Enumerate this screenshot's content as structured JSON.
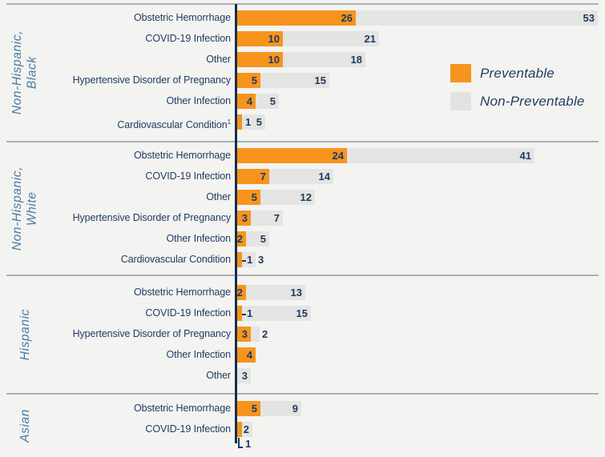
{
  "colors": {
    "preventable": "#f7941e",
    "non_preventable": "#e4e4e3",
    "axis": "#16304d",
    "text": "#1c3a5e",
    "group_label": "#4a7aa6",
    "background": "#f3f3f1",
    "separator": "#abb1b5"
  },
  "legend": {
    "items": [
      {
        "label": "Preventable",
        "color": "#f7941e"
      },
      {
        "label": "Non-Preventable",
        "color": "#e4e4e3"
      }
    ]
  },
  "chart_data": {
    "type": "bar",
    "orientation": "horizontal",
    "stacked": true,
    "series_names": [
      "Preventable",
      "Non-Preventable"
    ],
    "legend_position": "top-right",
    "groups": [
      {
        "group": "Non-Hispanic, Black",
        "group_lines": [
          "Non-Hispanic,",
          "Black"
        ],
        "rows": [
          {
            "category": "Obstetric Hemorrhage",
            "preventable": 26,
            "non_preventable": 53,
            "p_pos": "inside",
            "n_pos": "inside"
          },
          {
            "category": "COVID-19 Infection",
            "preventable": 10,
            "non_preventable": 21,
            "p_pos": "inside",
            "n_pos": "inside"
          },
          {
            "category": "Other",
            "preventable": 10,
            "non_preventable": 18,
            "p_pos": "inside",
            "n_pos": "inside"
          },
          {
            "category": "Hypertensive Disorder of Pregnancy",
            "preventable": 5,
            "non_preventable": 15,
            "p_pos": "inside",
            "n_pos": "inside"
          },
          {
            "category": "Other Infection",
            "preventable": 4,
            "non_preventable": 5,
            "p_pos": "inside",
            "n_pos": "inside"
          },
          {
            "category": "Cardiovascular Condition",
            "footnote": "1",
            "preventable": 1,
            "non_preventable": 5,
            "p_pos": "after",
            "n_pos": "inside"
          }
        ]
      },
      {
        "group": "Non-Hispanic, White",
        "group_lines": [
          "Non-Hispanic,",
          "White"
        ],
        "rows": [
          {
            "category": "Obstetric Hemorrhage",
            "preventable": 24,
            "non_preventable": 41,
            "p_pos": "inside",
            "n_pos": "inside"
          },
          {
            "category": "COVID-19 Infection",
            "preventable": 7,
            "non_preventable": 14,
            "p_pos": "inside",
            "n_pos": "inside"
          },
          {
            "category": "Other",
            "preventable": 5,
            "non_preventable": 12,
            "p_pos": "inside",
            "n_pos": "inside"
          },
          {
            "category": "Hypertensive Disorder of Pregnancy",
            "preventable": 3,
            "non_preventable": 7,
            "p_pos": "inside",
            "n_pos": "inside"
          },
          {
            "category": "Other Infection",
            "preventable": 2,
            "non_preventable": 5,
            "p_pos": "inside",
            "n_pos": "inside"
          },
          {
            "category": "Cardiovascular Condition",
            "preventable": 1,
            "non_preventable": 3,
            "p_pos": "dash-leader",
            "n_pos": "after"
          }
        ]
      },
      {
        "group": "Hispanic",
        "group_lines": [
          "Hispanic"
        ],
        "rows": [
          {
            "category": "Obstetric Hemorrhage",
            "preventable": 2,
            "non_preventable": 13,
            "p_pos": "inside",
            "n_pos": "inside"
          },
          {
            "category": "COVID-19 Infection",
            "preventable": 1,
            "non_preventable": 15,
            "p_pos": "dash-leader",
            "n_pos": "inside"
          },
          {
            "category": "Hypertensive Disorder of Pregnancy",
            "preventable": 3,
            "non_preventable": 2,
            "p_pos": "inside",
            "n_pos": "after"
          },
          {
            "category": "Other Infection",
            "preventable": 4,
            "non_preventable": 0,
            "p_pos": "inside",
            "n_pos": "none"
          },
          {
            "category": "Other",
            "preventable": 0,
            "non_preventable": 3,
            "p_pos": "none",
            "n_pos": "inside"
          }
        ]
      },
      {
        "group": "Asian",
        "group_lines": [
          "Asian"
        ],
        "rows": [
          {
            "category": "Obstetric Hemorrhage",
            "preventable": 5,
            "non_preventable": 9,
            "p_pos": "inside",
            "n_pos": "inside"
          },
          {
            "category": "COVID-19 Infection",
            "preventable": 1,
            "non_preventable": 2,
            "p_pos": "elbow-leader",
            "n_pos": "inside"
          }
        ]
      }
    ]
  }
}
